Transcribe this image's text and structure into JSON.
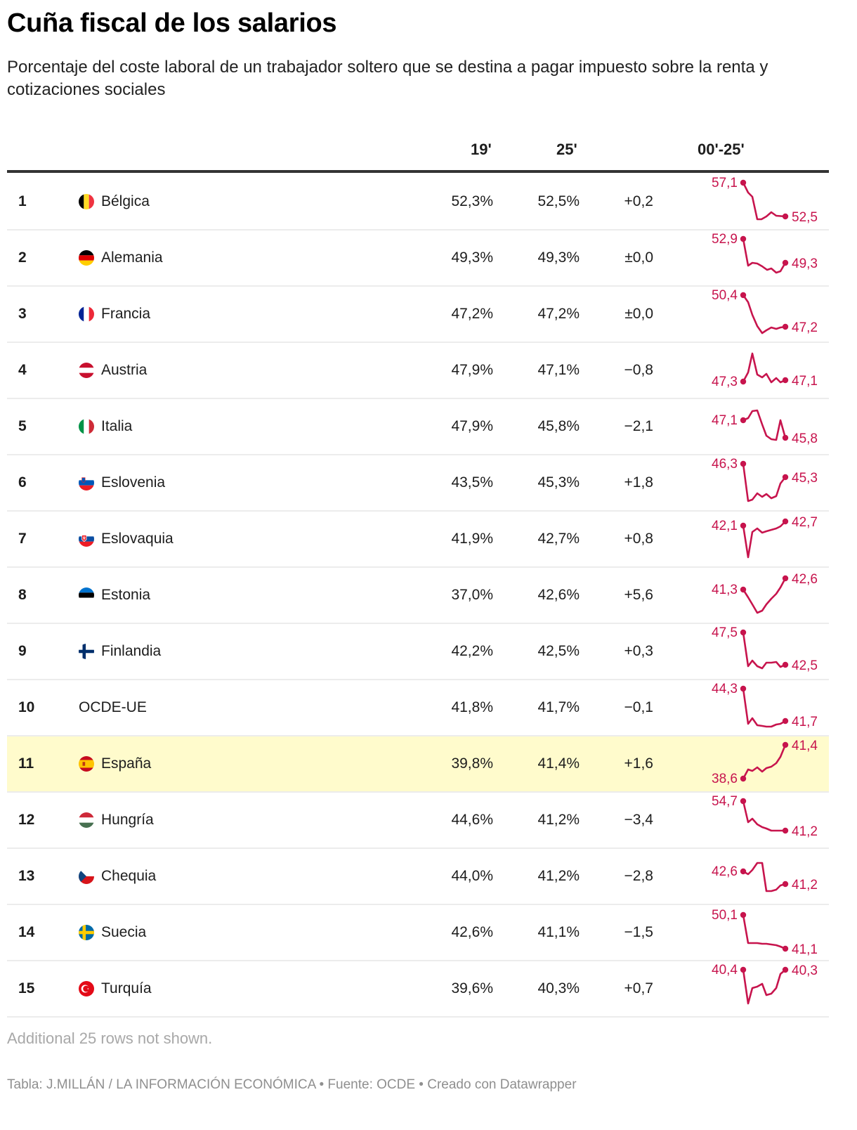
{
  "title": "Cuña fiscal de los salarios",
  "subtitle": "Porcentaje del coste laboral de un trabajador soltero que se destina a pagar impuesto sobre la renta y cotizaciones sociales",
  "columns": {
    "rank": "",
    "country": "",
    "y19": "19'",
    "y25": "25'",
    "diff": "",
    "trend": "00'-25'"
  },
  "colors": {
    "accent": "#c7144d",
    "highlight_row": "#fffbcc",
    "header_rule": "#333333",
    "row_rule": "#ececec"
  },
  "rows": [
    {
      "rank": "1",
      "country": "Bélgica",
      "flag": "belgium-flag",
      "y19": "52,3%",
      "y25": "52,5%",
      "diff": "+0,2",
      "spark_start": "57,1",
      "spark_end": "52,5",
      "highlight": false
    },
    {
      "rank": "2",
      "country": "Alemania",
      "flag": "germany-flag",
      "y19": "49,3%",
      "y25": "49,3%",
      "diff": "±0,0",
      "spark_start": "52,9",
      "spark_end": "49,3",
      "highlight": false
    },
    {
      "rank": "3",
      "country": "Francia",
      "flag": "france-flag",
      "y19": "47,2%",
      "y25": "47,2%",
      "diff": "±0,0",
      "spark_start": "50,4",
      "spark_end": "47,2",
      "highlight": false
    },
    {
      "rank": "4",
      "country": "Austria",
      "flag": "austria-flag",
      "y19": "47,9%",
      "y25": "47,1%",
      "diff": "−0,8",
      "spark_start": "47,3",
      "spark_end": "47,1",
      "highlight": false
    },
    {
      "rank": "5",
      "country": "Italia",
      "flag": "italy-flag",
      "y19": "47,9%",
      "y25": "45,8%",
      "diff": "−2,1",
      "spark_start": "47,1",
      "spark_end": "45,8",
      "highlight": false
    },
    {
      "rank": "6",
      "country": "Eslovenia",
      "flag": "slovenia-flag",
      "y19": "43,5%",
      "y25": "45,3%",
      "diff": "+1,8",
      "spark_start": "46,3",
      "spark_end": "45,3",
      "highlight": false
    },
    {
      "rank": "7",
      "country": "Eslovaquia",
      "flag": "slovakia-flag",
      "y19": "41,9%",
      "y25": "42,7%",
      "diff": "+0,8",
      "spark_start": "42,1",
      "spark_end": "42,7",
      "highlight": false
    },
    {
      "rank": "8",
      "country": "Estonia",
      "flag": "estonia-flag",
      "y19": "37,0%",
      "y25": "42,6%",
      "diff": "+5,6",
      "spark_start": "41,3",
      "spark_end": "42,6",
      "highlight": false
    },
    {
      "rank": "9",
      "country": "Finlandia",
      "flag": "finland-flag",
      "y19": "42,2%",
      "y25": "42,5%",
      "diff": "+0,3",
      "spark_start": "47,5",
      "spark_end": "42,5",
      "highlight": false
    },
    {
      "rank": "10",
      "country": "OCDE-UE",
      "flag": "",
      "y19": "41,8%",
      "y25": "41,7%",
      "diff": "−0,1",
      "spark_start": "44,3",
      "spark_end": "41,7",
      "highlight": false
    },
    {
      "rank": "11",
      "country": "España",
      "flag": "spain-flag",
      "y19": "39,8%",
      "y25": "41,4%",
      "diff": "+1,6",
      "spark_start": "38,6",
      "spark_end": "41,4",
      "highlight": true
    },
    {
      "rank": "12",
      "country": "Hungría",
      "flag": "hungary-flag",
      "y19": "44,6%",
      "y25": "41,2%",
      "diff": "−3,4",
      "spark_start": "54,7",
      "spark_end": "41,2",
      "highlight": false
    },
    {
      "rank": "13",
      "country": "Chequia",
      "flag": "czechia-flag",
      "y19": "44,0%",
      "y25": "41,2%",
      "diff": "−2,8",
      "spark_start": "42,6",
      "spark_end": "41,2",
      "highlight": false
    },
    {
      "rank": "14",
      "country": "Suecia",
      "flag": "sweden-flag",
      "y19": "42,6%",
      "y25": "41,1%",
      "diff": "−1,5",
      "spark_start": "50,1",
      "spark_end": "41,1",
      "highlight": false
    },
    {
      "rank": "15",
      "country": "Turquía",
      "flag": "turkey-flag",
      "y19": "39,6%",
      "y25": "40,3%",
      "diff": "+0,7",
      "spark_start": "40,4",
      "spark_end": "40,3",
      "highlight": false
    }
  ],
  "sparklines": [
    [
      [
        0,
        12
      ],
      [
        7,
        26
      ],
      [
        13,
        32
      ],
      [
        20,
        64
      ],
      [
        26,
        64
      ],
      [
        33,
        60
      ],
      [
        40,
        54
      ],
      [
        47,
        59
      ],
      [
        60,
        60
      ]
    ],
    [
      [
        0,
        12
      ],
      [
        7,
        50
      ],
      [
        13,
        46
      ],
      [
        20,
        47
      ],
      [
        27,
        51
      ],
      [
        34,
        56
      ],
      [
        40,
        54
      ],
      [
        47,
        60
      ],
      [
        53,
        58
      ],
      [
        60,
        46
      ]
    ],
    [
      [
        0,
        12
      ],
      [
        7,
        22
      ],
      [
        13,
        40
      ],
      [
        20,
        56
      ],
      [
        27,
        66
      ],
      [
        33,
        62
      ],
      [
        40,
        58
      ],
      [
        47,
        60
      ],
      [
        53,
        58
      ],
      [
        60,
        57
      ]
    ],
    [
      [
        0,
        55
      ],
      [
        7,
        42
      ],
      [
        13,
        15
      ],
      [
        20,
        45
      ],
      [
        27,
        49
      ],
      [
        33,
        44
      ],
      [
        40,
        56
      ],
      [
        47,
        50
      ],
      [
        53,
        56
      ],
      [
        60,
        53
      ]
    ],
    [
      [
        0,
        30
      ],
      [
        7,
        27
      ],
      [
        13,
        17
      ],
      [
        20,
        16
      ],
      [
        27,
        36
      ],
      [
        33,
        52
      ],
      [
        40,
        57
      ],
      [
        47,
        58
      ],
      [
        53,
        30
      ],
      [
        60,
        55
      ]
    ],
    [
      [
        0,
        12
      ],
      [
        7,
        65
      ],
      [
        13,
        63
      ],
      [
        20,
        54
      ],
      [
        27,
        59
      ],
      [
        33,
        55
      ],
      [
        40,
        61
      ],
      [
        47,
        58
      ],
      [
        53,
        40
      ],
      [
        60,
        31
      ]
    ],
    [
      [
        0,
        20
      ],
      [
        7,
        65
      ],
      [
        13,
        29
      ],
      [
        20,
        24
      ],
      [
        27,
        30
      ],
      [
        33,
        28
      ],
      [
        40,
        26
      ],
      [
        47,
        24
      ],
      [
        53,
        21
      ],
      [
        60,
        14
      ]
    ],
    [
      [
        0,
        31
      ],
      [
        7,
        42
      ],
      [
        13,
        52
      ],
      [
        20,
        64
      ],
      [
        27,
        61
      ],
      [
        33,
        52
      ],
      [
        40,
        44
      ],
      [
        47,
        37
      ],
      [
        53,
        28
      ],
      [
        60,
        15
      ]
    ],
    [
      [
        0,
        12
      ],
      [
        7,
        60
      ],
      [
        13,
        52
      ],
      [
        20,
        60
      ],
      [
        27,
        63
      ],
      [
        33,
        55
      ],
      [
        40,
        55
      ],
      [
        47,
        54
      ],
      [
        53,
        61
      ],
      [
        60,
        58
      ]
    ],
    [
      [
        0,
        12
      ],
      [
        7,
        62
      ],
      [
        13,
        54
      ],
      [
        20,
        64
      ],
      [
        27,
        65
      ],
      [
        33,
        66
      ],
      [
        40,
        66
      ],
      [
        47,
        63
      ],
      [
        53,
        62
      ],
      [
        60,
        58
      ]
    ],
    [
      [
        0,
        60
      ],
      [
        7,
        47
      ],
      [
        13,
        49
      ],
      [
        20,
        44
      ],
      [
        27,
        50
      ],
      [
        33,
        45
      ],
      [
        40,
        43
      ],
      [
        47,
        38
      ],
      [
        53,
        29
      ],
      [
        60,
        12
      ]
    ],
    [
      [
        0,
        12
      ],
      [
        7,
        42
      ],
      [
        13,
        37
      ],
      [
        20,
        45
      ],
      [
        27,
        49
      ],
      [
        33,
        51
      ],
      [
        40,
        54
      ],
      [
        47,
        54
      ],
      [
        53,
        54
      ],
      [
        60,
        54
      ]
    ],
    [
      [
        0,
        32
      ],
      [
        7,
        36
      ],
      [
        13,
        30
      ],
      [
        20,
        20
      ],
      [
        27,
        20
      ],
      [
        33,
        60
      ],
      [
        40,
        60
      ],
      [
        47,
        58
      ],
      [
        53,
        52
      ],
      [
        60,
        50
      ]
    ],
    [
      [
        0,
        14
      ],
      [
        7,
        54
      ],
      [
        13,
        54
      ],
      [
        20,
        54
      ],
      [
        27,
        55
      ],
      [
        33,
        55
      ],
      [
        40,
        56
      ],
      [
        47,
        57
      ],
      [
        53,
        59
      ],
      [
        60,
        62
      ]
    ],
    [
      [
        0,
        12
      ],
      [
        7,
        60
      ],
      [
        13,
        38
      ],
      [
        20,
        36
      ],
      [
        27,
        32
      ],
      [
        33,
        48
      ],
      [
        40,
        46
      ],
      [
        47,
        38
      ],
      [
        53,
        18
      ],
      [
        60,
        12
      ]
    ]
  ],
  "note": "Additional 25 rows not shown.",
  "footer": "Tabla: J.MILLÁN / LA INFORMACIÓN ECONÓMICA • Fuente: OCDE • Creado con Datawrapper"
}
